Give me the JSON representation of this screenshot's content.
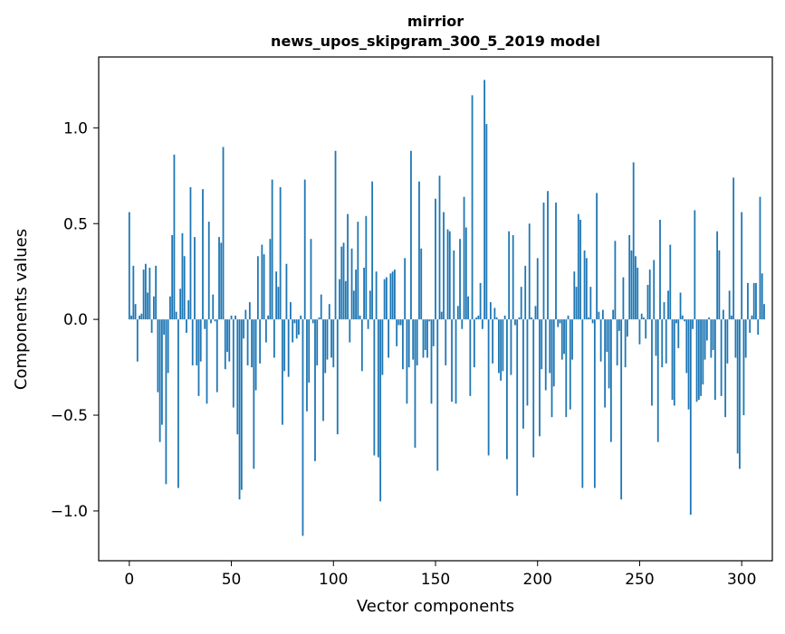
{
  "chart_data": {
    "type": "bar",
    "title_line1": "mirrior",
    "title_line2": "news_upos_skipgram_300_5_2019 model",
    "xlabel": "Vector components",
    "ylabel": "Components values",
    "xlim": [
      -15,
      315
    ],
    "ylim": [
      -1.26,
      1.37
    ],
    "xticks": [
      0,
      50,
      100,
      150,
      200,
      250,
      300
    ],
    "xtick_labels": [
      "0",
      "50",
      "100",
      "150",
      "200",
      "250",
      "300"
    ],
    "yticks": [
      -1.0,
      -0.5,
      0.0,
      0.5,
      1.0
    ],
    "ytick_labels": [
      "−1.0",
      "−0.5",
      "0.0",
      "0.5",
      "1.0"
    ],
    "grid": false,
    "bar_color": "#1f77b4",
    "values": [
      0.56,
      0.02,
      0.28,
      0.08,
      -0.22,
      0.02,
      0.03,
      0.26,
      0.29,
      0.14,
      0.27,
      -0.07,
      0.12,
      0.28,
      -0.38,
      -0.64,
      -0.55,
      -0.08,
      -0.86,
      -0.28,
      0.12,
      0.44,
      0.86,
      0.04,
      -0.88,
      0.16,
      0.45,
      0.33,
      -0.07,
      0.1,
      0.69,
      -0.24,
      0.43,
      -0.24,
      -0.4,
      -0.22,
      0.68,
      -0.05,
      -0.44,
      0.51,
      -0.02,
      0.13,
      -0.01,
      -0.38,
      0.43,
      0.4,
      0.9,
      -0.26,
      -0.17,
      -0.22,
      0.02,
      -0.46,
      0.02,
      -0.6,
      -0.94,
      -0.89,
      -0.1,
      0.05,
      -0.24,
      0.09,
      -0.25,
      -0.78,
      -0.37,
      0.33,
      -0.23,
      0.39,
      0.34,
      -0.12,
      0.02,
      0.42,
      0.73,
      -0.2,
      0.25,
      0.17,
      0.69,
      -0.55,
      -0.27,
      0.29,
      -0.3,
      0.09,
      -0.12,
      -0.02,
      -0.1,
      -0.08,
      0.02,
      -1.13,
      0.73,
      -0.48,
      -0.33,
      0.42,
      -0.02,
      -0.74,
      -0.24,
      0.01,
      0.13,
      -0.53,
      -0.28,
      -0.21,
      0.08,
      -0.2,
      -0.25,
      0.88,
      -0.6,
      0.21,
      0.38,
      0.4,
      0.2,
      0.55,
      -0.12,
      0.37,
      0.15,
      0.26,
      0.51,
      0.02,
      -0.27,
      0.27,
      0.54,
      -0.05,
      0.15,
      0.72,
      -0.71,
      0.25,
      -0.72,
      -0.95,
      -0.29,
      0.21,
      0.22,
      -0.2,
      0.24,
      0.25,
      0.26,
      -0.14,
      -0.03,
      -0.03,
      -0.26,
      0.32,
      -0.44,
      -0.25,
      0.88,
      -0.21,
      -0.67,
      -0.24,
      0.72,
      0.37,
      -0.2,
      -0.16,
      -0.2,
      -0.01,
      -0.44,
      -0.14,
      0.63,
      -0.79,
      0.75,
      0.04,
      0.56,
      -0.24,
      0.47,
      0.46,
      -0.43,
      0.36,
      -0.44,
      0.07,
      0.42,
      -0.05,
      0.64,
      0.48,
      0.12,
      -0.4,
      1.17,
      -0.25,
      0.01,
      0.02,
      0.19,
      -0.05,
      1.25,
      1.02,
      -0.71,
      0.09,
      -0.23,
      0.06,
      0.01,
      -0.28,
      -0.32,
      -0.27,
      0.02,
      -0.73,
      0.46,
      -0.29,
      0.44,
      -0.03,
      -0.92,
      0.01,
      0.17,
      -0.57,
      0.28,
      -0.45,
      0.5,
      0.01,
      -0.72,
      0.07,
      0.32,
      -0.61,
      -0.26,
      0.61,
      -0.37,
      0.67,
      -0.28,
      -0.51,
      -0.35,
      0.61,
      -0.04,
      -0.02,
      -0.21,
      -0.18,
      -0.51,
      0.02,
      -0.47,
      -0.21,
      0.25,
      0.17,
      0.55,
      0.52,
      -0.88,
      0.36,
      0.32,
      0.01,
      0.17,
      -0.02,
      -0.88,
      0.66,
      0.04,
      -0.22,
      0.05,
      -0.46,
      -0.17,
      -0.36,
      -0.64,
      0.05,
      0.41,
      -0.24,
      -0.06,
      -0.94,
      0.22,
      -0.25,
      -0.09,
      0.44,
      0.36,
      0.82,
      0.33,
      0.27,
      -0.13,
      0.03,
      0.01,
      -0.1,
      0.18,
      0.26,
      -0.45,
      0.31,
      -0.19,
      -0.64,
      0.52,
      -0.25,
      0.09,
      -0.23,
      0.15,
      0.39,
      -0.42,
      -0.45,
      -0.02,
      -0.15,
      0.14,
      0.02,
      -0.01,
      -0.28,
      -0.47,
      -1.02,
      -0.05,
      0.57,
      -0.43,
      -0.42,
      -0.4,
      -0.34,
      -0.21,
      -0.11,
      0.01,
      -0.2,
      -0.16,
      -0.42,
      0.46,
      0.36,
      -0.4,
      0.05,
      -0.51,
      -0.23,
      0.15,
      0.02,
      0.74,
      -0.2,
      -0.7,
      -0.78,
      0.56,
      -0.5,
      -0.2,
      0.19,
      -0.07,
      0.02,
      0.19,
      0.19,
      -0.08,
      0.64,
      0.24,
      0.08
    ]
  }
}
